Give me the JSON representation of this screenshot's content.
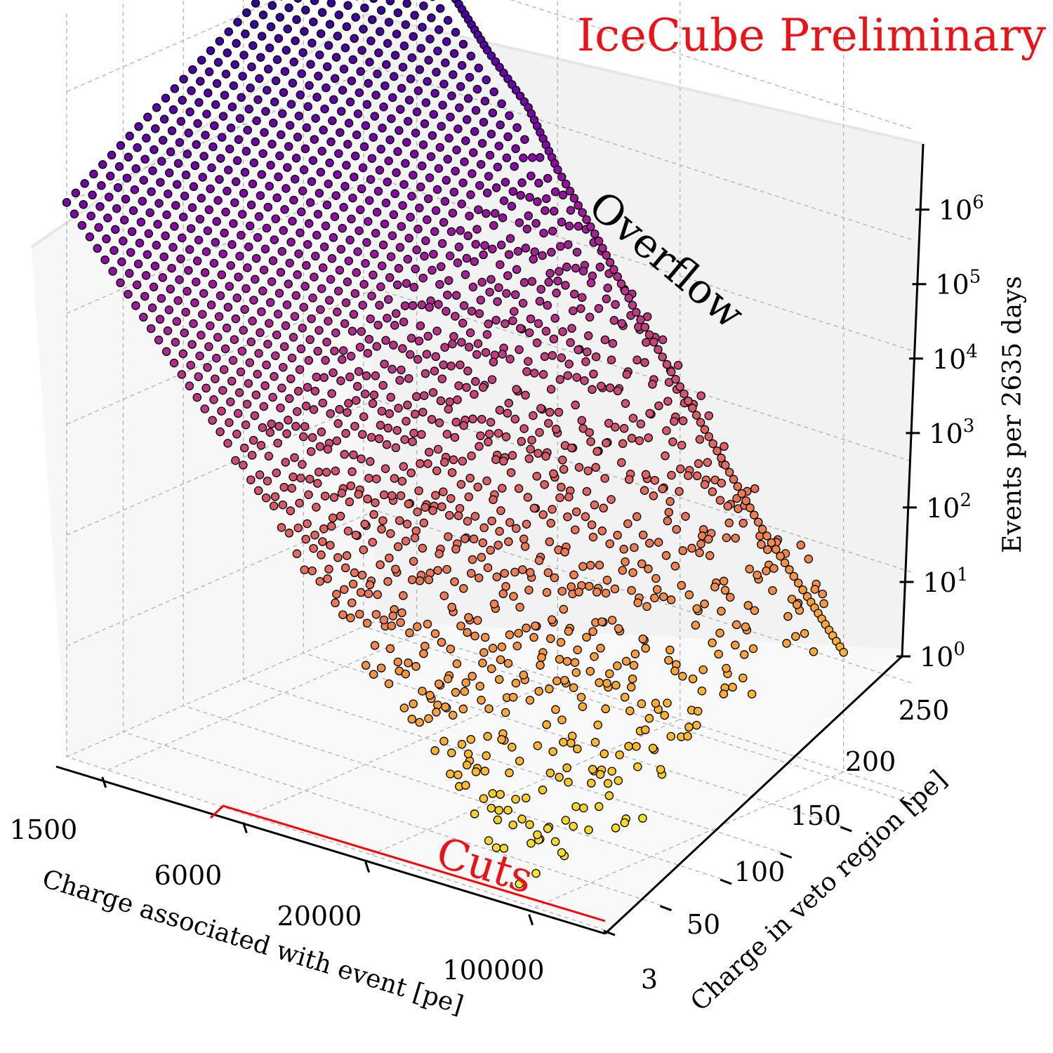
{
  "chart_data": {
    "type": "scatter",
    "projection": "3d",
    "title": "",
    "watermark": "IceCube Preliminary",
    "xlabel": "Charge associated with event [pe]",
    "ylabel": "Charge in veto region [pe]",
    "zlabel": "Events per 2635 days",
    "x_scale": "log",
    "z_scale": "log",
    "x_ticks": [
      "1500",
      "6000",
      "20000",
      "100000"
    ],
    "y_ticks": [
      "3",
      "50",
      "100",
      "150",
      "200",
      "250"
    ],
    "z_ticks": [
      {
        "base": "10",
        "exp": "0"
      },
      {
        "base": "10",
        "exp": "1"
      },
      {
        "base": "10",
        "exp": "2"
      },
      {
        "base": "10",
        "exp": "3"
      },
      {
        "base": "10",
        "exp": "4"
      },
      {
        "base": "10",
        "exp": "5"
      },
      {
        "base": "10",
        "exp": "6"
      }
    ],
    "xlim": [
      1000,
      200000
    ],
    "ylim": [
      3,
      260
    ],
    "zlim_log10": [
      0,
      6.7
    ],
    "grid": true,
    "colormap": "plasma",
    "annotations": [
      {
        "text": "Overflow",
        "position": "along the overflow series, upper right"
      },
      {
        "text": "Cuts",
        "position": "along x axis, charge above 6000 pe",
        "color": "#e8141a"
      }
    ],
    "series": [
      {
        "name": "Overflow",
        "description_points": "charge vs events at maximum veto charge",
        "x": [
          1000,
          1500,
          2200,
          3000,
          4500,
          6000,
          9000,
          13000,
          20000,
          30000,
          45000,
          70000,
          100000
        ],
        "z": [
          3000000,
          1500000,
          700000,
          300000,
          120000,
          40000,
          12000,
          3500,
          1000,
          300,
          90,
          30,
          12
        ]
      },
      {
        "name": "surface",
        "description_points": "events per (charge, veto charge) bin",
        "x_range": [
          1000,
          100000
        ],
        "y_range": [
          3,
          250
        ],
        "z_peak": 3000000
      }
    ]
  },
  "colors": {
    "cuts_line": "#ff0000",
    "annotation_red": "#e8141a",
    "grid": "#b0b0b0",
    "marker_edge": "#000000"
  }
}
